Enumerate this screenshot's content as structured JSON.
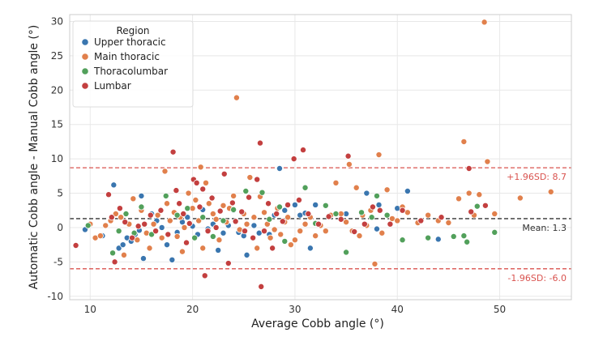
{
  "chart_data": {
    "type": "scatter",
    "xlabel": "Average Cobb angle (°)",
    "ylabel": "Automatic Cobb angle - Manual Cobb angle (°)",
    "xlim": [
      8,
      57
    ],
    "ylim": [
      -10.5,
      31
    ],
    "xticks": [
      10,
      20,
      30,
      40,
      50
    ],
    "yticks": [
      -10,
      -5,
      0,
      5,
      10,
      15,
      20,
      25,
      30
    ],
    "grid": true,
    "legend": {
      "title": "Region",
      "placement": "top-left",
      "entries": [
        {
          "label": "Upper thoracic",
          "color": "#3a76af"
        },
        {
          "label": "Main thoracic",
          "color": "#e1804c"
        },
        {
          "label": "Thoracolumbar",
          "color": "#52a05b"
        },
        {
          "label": "Lumbar",
          "color": "#c33f3f"
        }
      ]
    },
    "reference_lines": [
      {
        "name": "upper-loa",
        "y": 8.7,
        "label": "+1.96SD: 8.7",
        "color": "#d9534f",
        "style": "dashed"
      },
      {
        "name": "mean",
        "y": 1.3,
        "label": "Mean: 1.3",
        "color": "#333333",
        "style": "dashed"
      },
      {
        "name": "lower-loa",
        "y": -6.0,
        "label": "-1.96SD: -6.0",
        "color": "#d9534f",
        "style": "dashed"
      }
    ],
    "series": [
      {
        "name": "Upper thoracic",
        "color": "#3a76af",
        "points": [
          [
            9.5,
            -0.3
          ],
          [
            11.2,
            -1.2
          ],
          [
            12.3,
            6.2
          ],
          [
            12.8,
            -3.0
          ],
          [
            13.2,
            -2.5
          ],
          [
            13.6,
            -1.5
          ],
          [
            14.0,
            -2.0
          ],
          [
            14.4,
            -1.0
          ],
          [
            14.8,
            -0.4
          ],
          [
            15.0,
            4.6
          ],
          [
            15.2,
            -4.5
          ],
          [
            16.0,
            2.0
          ],
          [
            16.5,
            1.0
          ],
          [
            17.0,
            0.0
          ],
          [
            17.5,
            -2.5
          ],
          [
            18.0,
            -4.7
          ],
          [
            18.5,
            -0.7
          ],
          [
            19.0,
            0.8
          ],
          [
            19.5,
            1.5
          ],
          [
            20.0,
            0.2
          ],
          [
            20.5,
            -1.0
          ],
          [
            21.0,
            2.6
          ],
          [
            21.5,
            -0.2
          ],
          [
            22.0,
            0.5
          ],
          [
            22.5,
            -3.3
          ],
          [
            23.0,
            -0.8
          ],
          [
            23.5,
            0.3
          ],
          [
            24.0,
            2.5
          ],
          [
            24.5,
            -0.7
          ],
          [
            25.0,
            -1.2
          ],
          [
            25.3,
            -4.0
          ],
          [
            26.0,
            0.3
          ],
          [
            26.5,
            -0.8
          ],
          [
            27.5,
            -1.0
          ],
          [
            28.0,
            1.8
          ],
          [
            28.5,
            8.6
          ],
          [
            29.0,
            2.5
          ],
          [
            30.0,
            3.3
          ],
          [
            30.5,
            1.8
          ],
          [
            31.0,
            2.1
          ],
          [
            31.5,
            -3.0
          ],
          [
            32.0,
            3.3
          ],
          [
            35.0,
            2.0
          ],
          [
            37.0,
            5.0
          ],
          [
            38.0,
            -0.2
          ],
          [
            38.2,
            3.3
          ],
          [
            40.0,
            2.8
          ],
          [
            41.0,
            5.3
          ],
          [
            44.0,
            -1.7
          ]
        ]
      },
      {
        "name": "Main thoracic",
        "color": "#e1804c",
        "points": [
          [
            10.0,
            0.5
          ],
          [
            10.5,
            -1.5
          ],
          [
            11.0,
            -1.2
          ],
          [
            11.5,
            0.3
          ],
          [
            12.0,
            1.0
          ],
          [
            12.5,
            2.0
          ],
          [
            13.0,
            1.5
          ],
          [
            13.3,
            -4.0
          ],
          [
            13.8,
            0.5
          ],
          [
            14.2,
            4.2
          ],
          [
            14.6,
            -1.8
          ],
          [
            15.0,
            2.5
          ],
          [
            15.5,
            -0.8
          ],
          [
            15.8,
            -3.0
          ],
          [
            16.2,
            0.5
          ],
          [
            16.6,
            1.8
          ],
          [
            17.0,
            -1.5
          ],
          [
            17.3,
            8.2
          ],
          [
            17.5,
            3.5
          ],
          [
            17.8,
            1.0
          ],
          [
            18.2,
            2.2
          ],
          [
            18.5,
            -1.3
          ],
          [
            18.8,
            1.5
          ],
          [
            19.0,
            -3.5
          ],
          [
            19.2,
            0.0
          ],
          [
            19.6,
            5.0
          ],
          [
            20.0,
            2.8
          ],
          [
            20.3,
            4.0
          ],
          [
            20.6,
            1.0
          ],
          [
            20.8,
            8.8
          ],
          [
            21.0,
            -3.0
          ],
          [
            21.3,
            6.5
          ],
          [
            21.6,
            3.5
          ],
          [
            22.0,
            2.0
          ],
          [
            22.3,
            1.2
          ],
          [
            22.6,
            -1.8
          ],
          [
            23.0,
            3.2
          ],
          [
            23.3,
            0.8
          ],
          [
            23.6,
            2.8
          ],
          [
            24.0,
            4.6
          ],
          [
            24.3,
            18.9
          ],
          [
            24.6,
            -0.3
          ],
          [
            25.0,
            2.0
          ],
          [
            25.3,
            0.5
          ],
          [
            25.6,
            7.3
          ],
          [
            26.0,
            1.5
          ],
          [
            26.3,
            -3.0
          ],
          [
            26.6,
            4.5
          ],
          [
            27.0,
            2.2
          ],
          [
            27.3,
            0.5
          ],
          [
            27.6,
            -1.5
          ],
          [
            28.0,
            -0.3
          ],
          [
            28.3,
            2.8
          ],
          [
            28.6,
            -1.0
          ],
          [
            29.0,
            0.8
          ],
          [
            29.3,
            1.5
          ],
          [
            29.6,
            -2.5
          ],
          [
            30.0,
            -1.8
          ],
          [
            30.5,
            -0.5
          ],
          [
            31.0,
            0.5
          ],
          [
            31.5,
            1.5
          ],
          [
            32.0,
            -1.2
          ],
          [
            32.5,
            0.3
          ],
          [
            33.0,
            -0.5
          ],
          [
            33.5,
            1.8
          ],
          [
            34.0,
            6.5
          ],
          [
            34.5,
            2.0
          ],
          [
            35.0,
            0.8
          ],
          [
            35.3,
            9.2
          ],
          [
            35.6,
            -0.5
          ],
          [
            36.0,
            5.8
          ],
          [
            36.3,
            -1.2
          ],
          [
            36.6,
            1.8
          ],
          [
            37.0,
            0.3
          ],
          [
            37.4,
            2.5
          ],
          [
            37.8,
            -5.3
          ],
          [
            38.2,
            10.6
          ],
          [
            38.5,
            -0.8
          ],
          [
            39.0,
            5.5
          ],
          [
            39.5,
            1.3
          ],
          [
            40.0,
            1.0
          ],
          [
            40.5,
            3.0
          ],
          [
            41.0,
            2.2
          ],
          [
            42.0,
            0.7
          ],
          [
            43.0,
            1.8
          ],
          [
            44.0,
            1.0
          ],
          [
            45.0,
            0.7
          ],
          [
            46.0,
            4.2
          ],
          [
            46.5,
            12.5
          ],
          [
            47.0,
            5.0
          ],
          [
            47.5,
            1.8
          ],
          [
            48.0,
            4.8
          ],
          [
            48.5,
            29.9
          ],
          [
            48.8,
            9.6
          ],
          [
            49.5,
            2.0
          ],
          [
            52.0,
            4.3
          ],
          [
            55.0,
            5.2
          ]
        ]
      },
      {
        "name": "Thoracolumbar",
        "color": "#52a05b",
        "points": [
          [
            9.8,
            0.3
          ],
          [
            12.2,
            -3.7
          ],
          [
            12.8,
            -0.5
          ],
          [
            13.5,
            2.0
          ],
          [
            14.3,
            -0.8
          ],
          [
            15.0,
            3.0
          ],
          [
            16.0,
            -1.0
          ],
          [
            17.4,
            4.6
          ],
          [
            18.5,
            1.8
          ],
          [
            19.5,
            2.8
          ],
          [
            20.2,
            -1.5
          ],
          [
            21.0,
            1.5
          ],
          [
            22.0,
            -1.3
          ],
          [
            23.0,
            1.0
          ],
          [
            24.0,
            2.6
          ],
          [
            25.2,
            5.3
          ],
          [
            26.8,
            5.1
          ],
          [
            27.5,
            1.2
          ],
          [
            28.5,
            3.0
          ],
          [
            29.0,
            -2.0
          ],
          [
            31.0,
            5.8
          ],
          [
            32.0,
            0.6
          ],
          [
            33.0,
            3.2
          ],
          [
            34.0,
            2.0
          ],
          [
            35.0,
            -3.6
          ],
          [
            36.5,
            2.2
          ],
          [
            37.5,
            1.5
          ],
          [
            38.0,
            4.6
          ],
          [
            39.0,
            1.8
          ],
          [
            40.5,
            -1.8
          ],
          [
            43.0,
            -1.5
          ],
          [
            45.5,
            -1.3
          ],
          [
            46.5,
            -1.2
          ],
          [
            46.8,
            -2.1
          ],
          [
            47.8,
            3.1
          ],
          [
            49.5,
            -0.7
          ]
        ]
      },
      {
        "name": "Lumbar",
        "color": "#c33f3f",
        "points": [
          [
            8.6,
            -2.6
          ],
          [
            11.8,
            4.8
          ],
          [
            12.1,
            1.5
          ],
          [
            12.4,
            -5.0
          ],
          [
            12.9,
            2.8
          ],
          [
            13.4,
            0.8
          ],
          [
            14.1,
            -1.5
          ],
          [
            14.7,
            0.2
          ],
          [
            15.3,
            0.5
          ],
          [
            15.9,
            1.8
          ],
          [
            16.4,
            -0.5
          ],
          [
            16.9,
            2.5
          ],
          [
            17.6,
            -1.0
          ],
          [
            18.1,
            11.0
          ],
          [
            18.4,
            5.4
          ],
          [
            18.7,
            3.5
          ],
          [
            19.1,
            2.0
          ],
          [
            19.4,
            -2.2
          ],
          [
            19.7,
            0.6
          ],
          [
            20.1,
            7.0
          ],
          [
            20.4,
            6.5
          ],
          [
            20.7,
            3.0
          ],
          [
            21.0,
            5.6
          ],
          [
            21.2,
            -7.0
          ],
          [
            21.5,
            -0.5
          ],
          [
            21.9,
            4.3
          ],
          [
            22.3,
            0.0
          ],
          [
            22.7,
            2.4
          ],
          [
            23.1,
            7.8
          ],
          [
            23.5,
            -5.2
          ],
          [
            23.9,
            3.6
          ],
          [
            24.2,
            0.9
          ],
          [
            24.8,
            2.3
          ],
          [
            25.1,
            -0.5
          ],
          [
            25.5,
            4.4
          ],
          [
            25.9,
            -1.5
          ],
          [
            26.3,
            7.0
          ],
          [
            26.6,
            12.3
          ],
          [
            26.7,
            -8.6
          ],
          [
            27.0,
            -0.5
          ],
          [
            27.4,
            3.5
          ],
          [
            27.8,
            -3.0
          ],
          [
            28.2,
            2.0
          ],
          [
            28.8,
            0.9
          ],
          [
            29.3,
            3.3
          ],
          [
            29.9,
            10.0
          ],
          [
            30.4,
            4.0
          ],
          [
            30.8,
            11.3
          ],
          [
            31.3,
            2.0
          ],
          [
            32.3,
            0.5
          ],
          [
            33.3,
            1.6
          ],
          [
            34.5,
            1.2
          ],
          [
            35.2,
            10.4
          ],
          [
            35.8,
            -0.6
          ],
          [
            36.8,
            0.5
          ],
          [
            37.6,
            3.0
          ],
          [
            38.3,
            2.5
          ],
          [
            39.3,
            0.5
          ],
          [
            40.5,
            2.5
          ],
          [
            42.3,
            1.0
          ],
          [
            44.3,
            1.5
          ],
          [
            47.0,
            8.6
          ],
          [
            47.2,
            2.3
          ],
          [
            48.6,
            3.2
          ]
        ]
      }
    ]
  }
}
